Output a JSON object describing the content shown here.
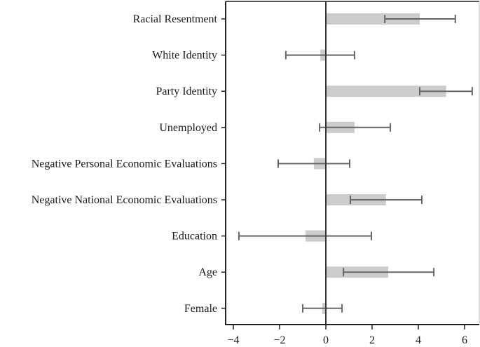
{
  "chart_data": {
    "type": "bar",
    "orientation": "horizontal",
    "title": "",
    "xlabel": "",
    "ylabel": "",
    "xlim": [
      -4.33,
      6.64
    ],
    "xticks": [
      -4,
      -2,
      0,
      2,
      4,
      6
    ],
    "xtick_labels": [
      "−4",
      "−2",
      "0",
      "2",
      "4",
      "6"
    ],
    "grid": false,
    "legend": null,
    "categories": [
      "Racial Resentment",
      "White Identity",
      "Party Identity",
      "Unemployed",
      "Negative Personal Economic Evaluations",
      "Negative National Economic Evaluations",
      "Education",
      "Age",
      "Female"
    ],
    "values": [
      4.06,
      -0.24,
      5.2,
      1.24,
      -0.52,
      2.6,
      -0.88,
      2.7,
      -0.15
    ],
    "ci_lower": [
      2.55,
      -1.73,
      4.06,
      -0.27,
      -2.06,
      1.06,
      -3.76,
      0.76,
      -1.0
    ],
    "ci_upper": [
      5.6,
      1.24,
      6.33,
      2.79,
      1.03,
      4.15,
      1.97,
      4.67,
      0.7
    ],
    "colors": {
      "bar": "#cccccc",
      "errorbar": "#666666",
      "axis": "#333333",
      "zero_line": "#333333"
    }
  }
}
